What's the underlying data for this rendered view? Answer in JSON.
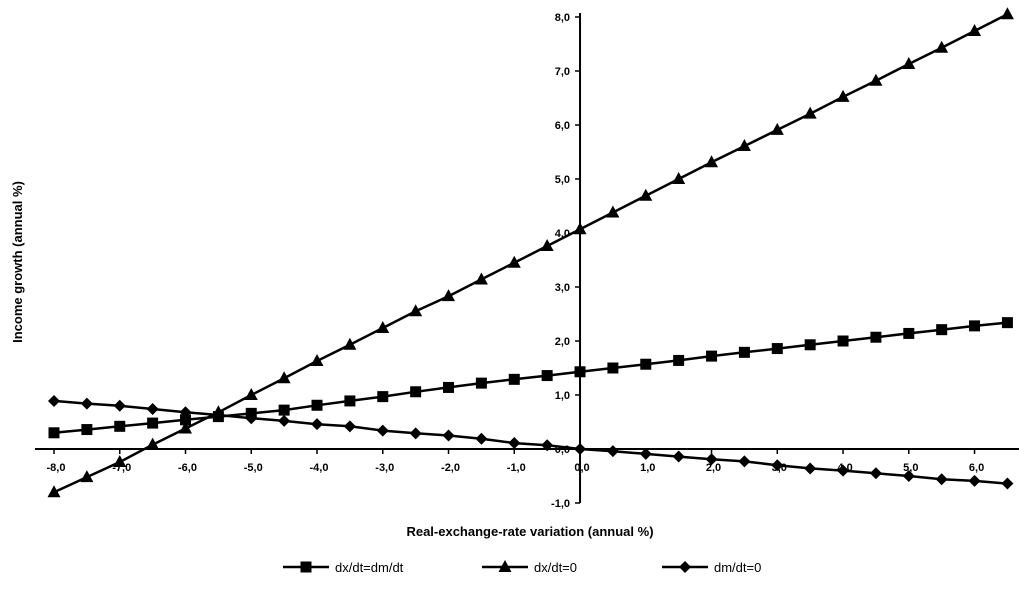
{
  "chart_data": {
    "type": "line",
    "title": "",
    "xlabel": "Real-exchange-rate variation (annual %)",
    "ylabel": "Income growth (annual %)",
    "xlim": [
      -8.0,
      6.6
    ],
    "ylim": [
      -1.0,
      8.0
    ],
    "x_ticks": [
      -8.0,
      -7.0,
      -6.0,
      -5.0,
      -4.0,
      -3.0,
      -2.0,
      -1.0,
      0.0,
      1.0,
      2.0,
      3.0,
      4.0,
      5.0,
      6.0
    ],
    "x_tick_labels": [
      "-8,0",
      "-7,0",
      "-6,0",
      "-5,0",
      "-4,0",
      "-3,0",
      "-2,0",
      "-1,0",
      "0,0",
      "1,0",
      "2,0",
      "3,0",
      "4,0",
      "5,0",
      "6,0"
    ],
    "y_ticks": [
      -1.0,
      0.0,
      1.0,
      2.0,
      3.0,
      4.0,
      5.0,
      6.0,
      7.0,
      8.0
    ],
    "y_tick_labels": [
      "-1,0",
      "0,0",
      "1,0",
      "2,0",
      "3,0",
      "4,0",
      "5,0",
      "6,0",
      "7,0",
      "8,0"
    ],
    "grid": false,
    "legend_position": "bottom",
    "x": [
      -8.0,
      -7.5,
      -7.0,
      -6.5,
      -6.0,
      -5.5,
      -5.0,
      -4.5,
      -4.0,
      -3.5,
      -3.0,
      -2.5,
      -2.0,
      -1.5,
      -1.0,
      -0.5,
      0.0,
      0.5,
      1.0,
      1.5,
      2.0,
      2.5,
      3.0,
      3.5,
      4.0,
      4.5,
      5.0,
      5.5,
      6.0,
      6.5
    ],
    "series": [
      {
        "name": "dx/dt=dm/dt",
        "marker": "square",
        "values": [
          0.3,
          0.36,
          0.42,
          0.48,
          0.54,
          0.6,
          0.66,
          0.72,
          0.81,
          0.89,
          0.97,
          1.06,
          1.14,
          1.22,
          1.29,
          1.36,
          1.43,
          1.5,
          1.57,
          1.64,
          1.72,
          1.79,
          1.86,
          1.93,
          2.0,
          2.07,
          2.14,
          2.21,
          2.28,
          2.34
        ]
      },
      {
        "name": "dx/dt=0",
        "marker": "triangle",
        "values": [
          -0.8,
          -0.52,
          -0.24,
          0.08,
          0.38,
          0.68,
          1.0,
          1.31,
          1.63,
          1.93,
          2.24,
          2.55,
          2.83,
          3.14,
          3.45,
          3.76,
          4.07,
          4.38,
          4.69,
          5.0,
          5.31,
          5.61,
          5.91,
          6.21,
          6.52,
          6.82,
          7.13,
          7.43,
          7.74,
          8.05
        ]
      },
      {
        "name": "dm/dt=0",
        "marker": "diamond",
        "values": [
          0.89,
          0.84,
          0.8,
          0.74,
          0.68,
          0.63,
          0.57,
          0.52,
          0.46,
          0.42,
          0.34,
          0.29,
          0.25,
          0.19,
          0.11,
          0.07,
          0.0,
          -0.04,
          -0.09,
          -0.14,
          -0.19,
          -0.23,
          -0.3,
          -0.36,
          -0.4,
          -0.45,
          -0.5,
          -0.56,
          -0.59,
          -0.64
        ]
      }
    ]
  }
}
